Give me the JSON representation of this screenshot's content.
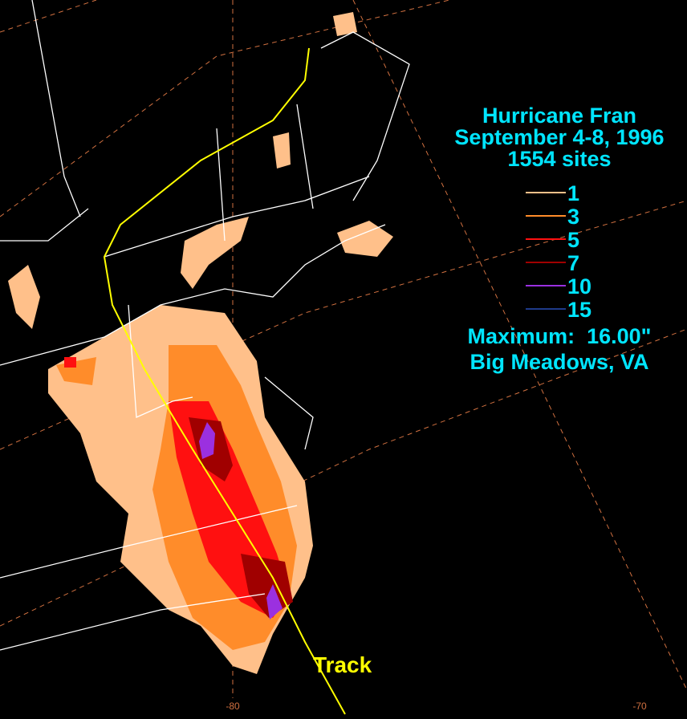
{
  "title": {
    "name": "Hurricane Fran",
    "dates": "September 4-8, 1996",
    "sites": "1554 sites"
  },
  "legend": [
    {
      "label": "1",
      "color": "#ffc08a"
    },
    {
      "label": "3",
      "color": "#ff8c2a"
    },
    {
      "label": "5",
      "color": "#ff1010"
    },
    {
      "label": "7",
      "color": "#a00000"
    },
    {
      "label": "10",
      "color": "#9b30e0"
    },
    {
      "label": "15",
      "color": "#1e3a8a"
    }
  ],
  "maximum": {
    "label": "Maximum:  16.00\"",
    "location": "Big Meadows, VA"
  },
  "track_label": "Track",
  "longitude_labels": [
    "-80",
    "-70"
  ]
}
